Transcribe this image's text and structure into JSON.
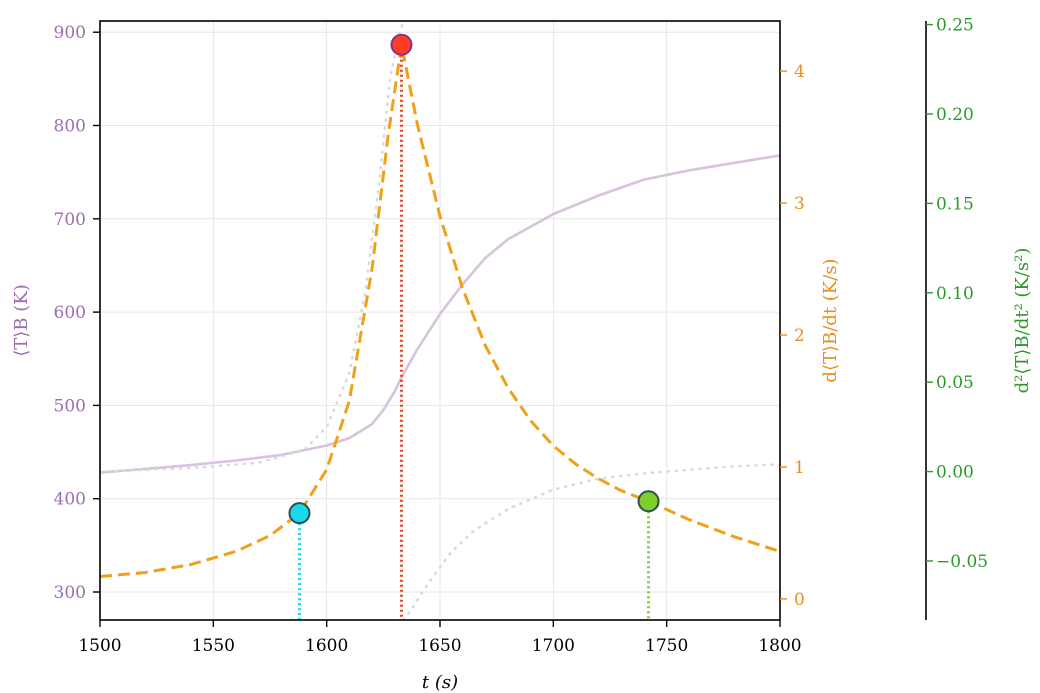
{
  "chart_data": {
    "type": "line",
    "title": "",
    "xlabel": "t (s)",
    "xlim": [
      1500,
      1800
    ],
    "xticks": [
      "1500",
      "1550",
      "1600",
      "1650",
      "1700",
      "1750",
      "1800"
    ],
    "grid": true,
    "axes": {
      "left": {
        "label": "⟨T⟩B (K)",
        "color": "#9b6fb0",
        "ylim": [
          270,
          912
        ],
        "ticks": [
          "300",
          "400",
          "500",
          "600",
          "700",
          "800",
          "900"
        ]
      },
      "right1": {
        "label": "d⟨T⟩B/dt (K/s)",
        "color": "#e8901a",
        "ylim": [
          -0.16,
          4.38
        ],
        "ticks": [
          "0",
          "1",
          "2",
          "3",
          "4"
        ]
      },
      "right2": {
        "label": "d²⟨T⟩B/dt² (K/s²)",
        "color": "#2a9a2a",
        "ylim": [
          -0.083,
          0.252
        ],
        "ticks": [
          "−0.05",
          "0.00",
          "0.05",
          "0.10",
          "0.15",
          "0.20",
          "0.25"
        ]
      }
    },
    "series": [
      {
        "axis": "left",
        "color": "#d8c2de",
        "style": "solid",
        "x": [
          1500,
          1520,
          1540,
          1560,
          1580,
          1600,
          1610,
          1620,
          1625,
          1630,
          1633,
          1640,
          1650,
          1660,
          1670,
          1680,
          1700,
          1720,
          1740,
          1760,
          1780,
          1800
        ],
        "y": [
          428,
          432,
          436,
          441,
          447,
          457,
          465,
          480,
          495,
          515,
          530,
          560,
          598,
          630,
          658,
          678,
          705,
          725,
          742,
          752,
          760,
          768
        ]
      },
      {
        "axis": "right1",
        "color": "#f0a019",
        "style": "dashed",
        "x": [
          1500,
          1520,
          1540,
          1560,
          1575,
          1588,
          1600,
          1610,
          1620,
          1627,
          1633,
          1640,
          1650,
          1660,
          1670,
          1680,
          1690,
          1700,
          1710,
          1720,
          1730,
          1742,
          1760,
          1780,
          1800
        ],
        "y": [
          0.17,
          0.2,
          0.26,
          0.36,
          0.48,
          0.65,
          0.98,
          1.5,
          2.5,
          3.5,
          4.2,
          3.6,
          2.9,
          2.35,
          1.92,
          1.6,
          1.35,
          1.16,
          1.02,
          0.91,
          0.82,
          0.74,
          0.6,
          0.47,
          0.36
        ]
      },
      {
        "axis": "right2",
        "color": "#d5dcd5",
        "style": "dotted",
        "x": [
          1500,
          1540,
          1570,
          1590,
          1600,
          1610,
          1617,
          1623,
          1628,
          1632,
          1634
        ],
        "y": [
          0.0,
          0.002,
          0.005,
          0.012,
          0.025,
          0.055,
          0.1,
          0.16,
          0.22,
          0.245,
          0.252
        ]
      },
      {
        "axis": "right2",
        "color": "#d5dcd5",
        "style": "dotted",
        "x": [
          1634,
          1638,
          1645,
          1655,
          1665,
          1680,
          1700,
          1720,
          1740,
          1760,
          1780,
          1800
        ],
        "y": [
          -0.083,
          -0.076,
          -0.062,
          -0.045,
          -0.033,
          -0.021,
          -0.01,
          -0.004,
          -0.001,
          0.001,
          0.003,
          0.004
        ]
      }
    ],
    "markers": [
      {
        "x": 1588,
        "axis": "right1",
        "y": 0.65,
        "fill": "#1ad8ec",
        "line": "#1ad8ec"
      },
      {
        "x": 1633,
        "axis": "right1",
        "y": 4.2,
        "fill": "#ff3d1f",
        "line": "#e8431a",
        "edge": "#8a3090"
      },
      {
        "x": 1742,
        "axis": "right1",
        "y": 0.74,
        "fill": "#7dd02a",
        "line": "#7dd02a"
      }
    ]
  }
}
